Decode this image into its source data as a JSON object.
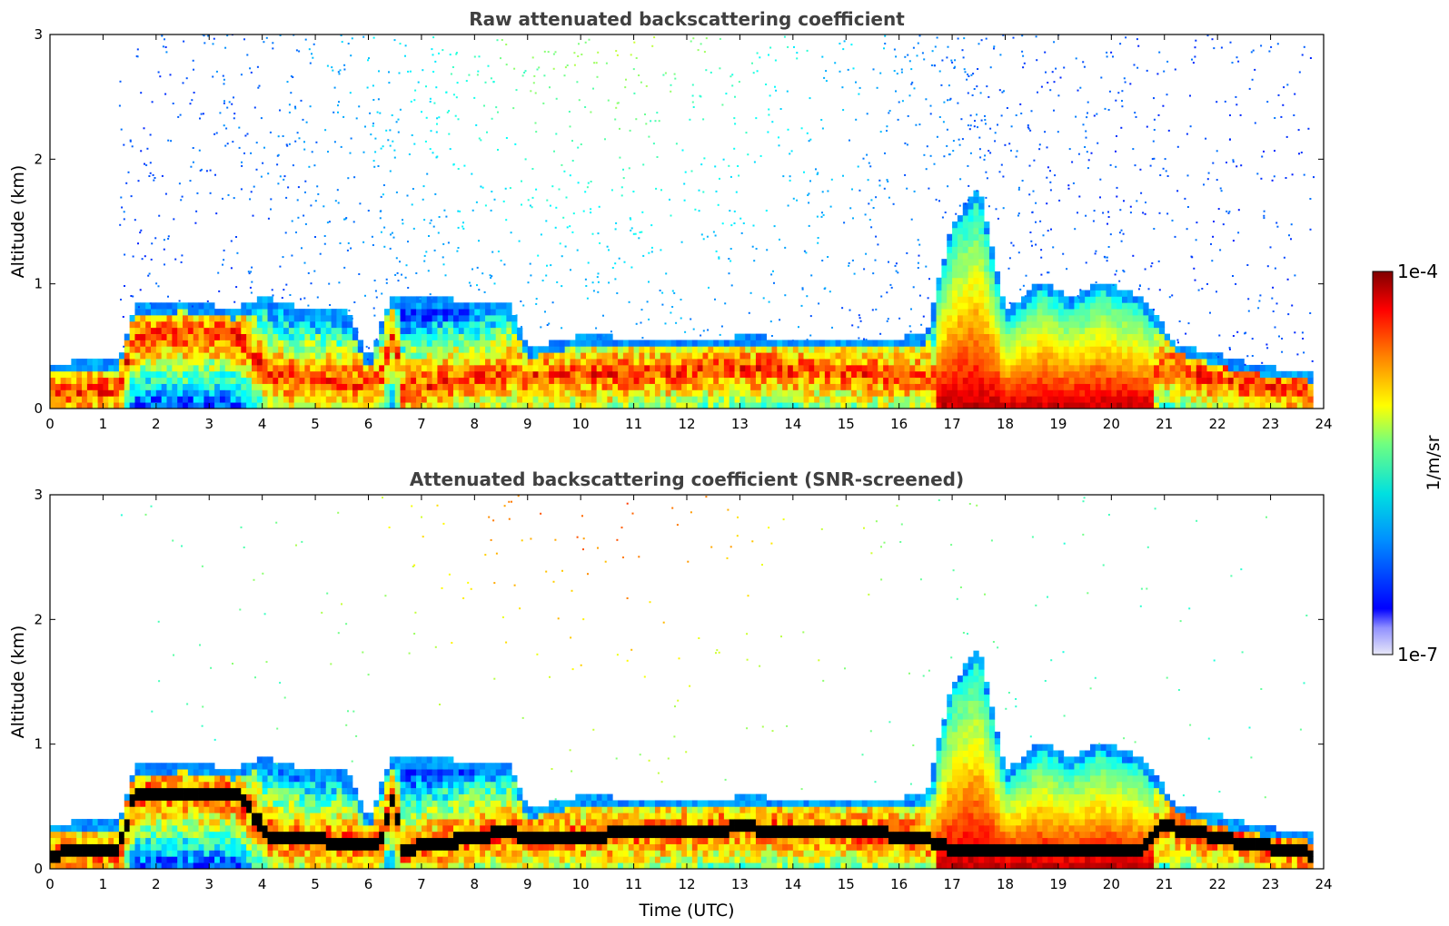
{
  "chart_data": [
    {
      "type": "heatmap",
      "title": "Raw attenuated backscattering coefficient",
      "xlabel": "",
      "ylabel": "Altitude (km)",
      "xlim": [
        0,
        24
      ],
      "ylim": [
        0,
        3
      ],
      "xticks": [
        "0",
        "1",
        "2",
        "3",
        "4",
        "5",
        "6",
        "7",
        "8",
        "9",
        "10",
        "11",
        "12",
        "13",
        "14",
        "15",
        "16",
        "17",
        "18",
        "19",
        "20",
        "21",
        "22",
        "23",
        "24"
      ],
      "yticks": [
        "0",
        "1",
        "2",
        "3"
      ],
      "colorscale": "jet",
      "screened": false,
      "layer_top_km": [
        [
          0,
          0.28
        ],
        [
          0.5,
          0.3
        ],
        [
          1.3,
          0.32
        ],
        [
          1.6,
          0.75
        ],
        [
          2.5,
          0.78
        ],
        [
          3.5,
          0.72
        ],
        [
          4.0,
          0.82
        ],
        [
          5.0,
          0.7
        ],
        [
          5.6,
          0.72
        ],
        [
          6.0,
          0.3
        ],
        [
          6.4,
          0.8
        ],
        [
          7.5,
          0.8
        ],
        [
          8.7,
          0.75
        ],
        [
          9.0,
          0.4
        ],
        [
          10.0,
          0.5
        ],
        [
          12.5,
          0.48
        ],
        [
          13.0,
          0.5
        ],
        [
          15.0,
          0.48
        ],
        [
          16.5,
          0.5
        ],
        [
          17.0,
          1.4
        ],
        [
          17.5,
          1.7
        ],
        [
          18.0,
          0.7
        ],
        [
          18.7,
          0.95
        ],
        [
          19.2,
          0.8
        ],
        [
          19.8,
          0.95
        ],
        [
          20.6,
          0.8
        ],
        [
          21.2,
          0.45
        ],
        [
          22.0,
          0.35
        ],
        [
          23.0,
          0.25
        ],
        [
          23.8,
          0.22
        ]
      ],
      "aerosol_peak_km": [
        [
          0,
          0.12
        ],
        [
          1.3,
          0.15
        ],
        [
          1.6,
          0.6
        ],
        [
          3.5,
          0.6
        ],
        [
          4.2,
          0.25
        ],
        [
          6.2,
          0.2
        ],
        [
          6.5,
          0.65
        ],
        [
          6.6,
          0.15
        ],
        [
          8.7,
          0.3
        ],
        [
          9.0,
          0.25
        ],
        [
          12.0,
          0.3
        ],
        [
          13.0,
          0.33
        ],
        [
          15.0,
          0.3
        ],
        [
          16.5,
          0.25
        ],
        [
          17.0,
          0.15
        ],
        [
          20.5,
          0.15
        ],
        [
          21.0,
          0.35
        ],
        [
          22.0,
          0.25
        ],
        [
          23.8,
          0.12
        ]
      ]
    },
    {
      "type": "heatmap",
      "title": "Attenuated backscattering coefficient (SNR-screened)",
      "xlabel": "Time (UTC)",
      "ylabel": "Altitude (km)",
      "xlim": [
        0,
        24
      ],
      "ylim": [
        0,
        3
      ],
      "xticks": [
        "0",
        "1",
        "2",
        "3",
        "4",
        "5",
        "6",
        "7",
        "8",
        "9",
        "10",
        "11",
        "12",
        "13",
        "14",
        "15",
        "16",
        "17",
        "18",
        "19",
        "20",
        "21",
        "22",
        "23",
        "24"
      ],
      "yticks": [
        "0",
        "1",
        "2",
        "3"
      ],
      "colorscale": "jet",
      "screened": true
    }
  ],
  "colorbar": {
    "label": "1/m/sr",
    "max_label": "1e-4",
    "min_label": "1e-7",
    "range": [
      1e-07,
      0.0001
    ],
    "scale": "log",
    "colors": [
      "#e8e8f8",
      "#0000ff",
      "#00a0ff",
      "#00e0e0",
      "#80ff80",
      "#ffff00",
      "#ff8000",
      "#ff0000",
      "#800000"
    ]
  }
}
